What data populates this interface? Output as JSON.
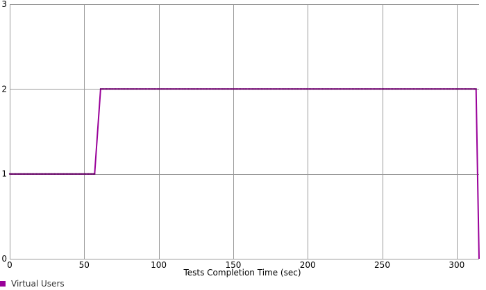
{
  "chart_data": {
    "type": "line",
    "title": "",
    "xlabel": "Tests Completion Time (sec)",
    "ylabel": "",
    "xlim": [
      0,
      315
    ],
    "ylim": [
      0,
      3
    ],
    "grid": true,
    "x_ticks": [
      0,
      50,
      100,
      150,
      200,
      250,
      300
    ],
    "y_ticks": [
      0,
      1,
      2,
      3
    ],
    "legend_position": "bottom-left",
    "series": [
      {
        "name": "Virtual Users",
        "color": "#990099",
        "x": [
          0,
          57,
          61,
          313,
          315
        ],
        "y": [
          1,
          1,
          2,
          2,
          0
        ]
      }
    ]
  }
}
